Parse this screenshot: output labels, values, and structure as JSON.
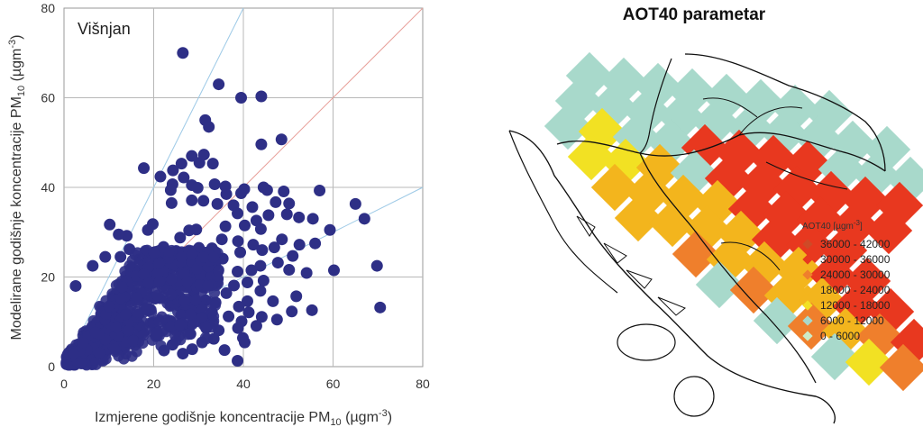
{
  "chart_data": [
    {
      "type": "scatter",
      "title": "",
      "annotation": "Višnjan",
      "xlabel": "Izmjerene godišnje koncentracije PM",
      "xlabel_sub": "10",
      "xlabel_unit": " (µgm",
      "xlabel_exp": "-3",
      "xlabel_close": ")",
      "ylabel": "Modelirane godišnje koncentracije PM",
      "ylabel_sub": "10",
      "ylabel_unit": " (µgm",
      "ylabel_exp": "-3",
      "ylabel_close": ")",
      "xlim": [
        0,
        80
      ],
      "ylim": [
        0,
        80
      ],
      "xticks": [
        "0",
        "20",
        "40",
        "60",
        "80"
      ],
      "yticks": [
        "0",
        "20",
        "40",
        "60",
        "80"
      ],
      "grid": true,
      "point_color": "#2e2f86",
      "reference_lines": [
        {
          "kind": "1:1",
          "slope": 1.0,
          "color": "#e8a09a"
        },
        {
          "kind": "factor 2 upper",
          "slope": 2.0,
          "color": "#9cc9e6"
        },
        {
          "kind": "factor 2 lower",
          "slope": 0.5,
          "color": "#9cc9e6"
        }
      ],
      "points": [
        [
          26.5,
          70
        ],
        [
          34.5,
          63
        ],
        [
          39.5,
          60
        ],
        [
          44,
          60.3
        ],
        [
          31.5,
          55
        ],
        [
          32.3,
          53.5
        ],
        [
          48.5,
          50.7
        ],
        [
          44,
          49.6
        ],
        [
          28.5,
          47
        ],
        [
          30.2,
          45.5
        ],
        [
          33.2,
          45.3
        ],
        [
          31.2,
          47.3
        ],
        [
          26.2,
          45.3
        ],
        [
          26.7,
          42.2
        ],
        [
          24.3,
          43.8
        ],
        [
          21.5,
          42.4
        ],
        [
          24.2,
          40.7
        ],
        [
          28.5,
          40.5
        ],
        [
          23.8,
          39.4
        ],
        [
          29.8,
          39.9
        ],
        [
          33.6,
          40.7
        ],
        [
          36,
          40.2
        ],
        [
          40.2,
          39.6
        ],
        [
          45.3,
          39.4
        ],
        [
          49,
          39.1
        ],
        [
          36.2,
          38.5
        ],
        [
          39.5,
          38.7
        ],
        [
          44.5,
          40
        ],
        [
          57,
          39.3
        ],
        [
          65,
          36.3
        ],
        [
          67,
          33
        ],
        [
          24,
          36.5
        ],
        [
          28.5,
          37.1
        ],
        [
          31.1,
          37
        ],
        [
          34.2,
          36.3
        ],
        [
          37.8,
          36
        ],
        [
          42,
          35.6
        ],
        [
          47.2,
          36.7
        ],
        [
          50.2,
          36.4
        ],
        [
          49.7,
          34
        ],
        [
          52.4,
          33.3
        ],
        [
          55.5,
          33
        ],
        [
          59.3,
          30.5
        ],
        [
          45.6,
          33.8
        ],
        [
          42.9,
          32.6
        ],
        [
          40.3,
          31.5
        ],
        [
          36,
          31.3
        ],
        [
          38.7,
          34.2
        ],
        [
          43.9,
          30.7
        ],
        [
          52.5,
          27.2
        ],
        [
          56,
          27.5
        ],
        [
          48.6,
          28.4
        ],
        [
          46.9,
          26.6
        ],
        [
          42.2,
          27.2
        ],
        [
          38.8,
          28
        ],
        [
          35.2,
          28.4
        ],
        [
          39.3,
          25.5
        ],
        [
          44.2,
          26
        ],
        [
          33,
          26.4
        ],
        [
          35.4,
          24.1
        ],
        [
          43.8,
          22.5
        ],
        [
          47.7,
          23.2
        ],
        [
          51,
          24.7
        ],
        [
          69.8,
          22.5
        ],
        [
          70.5,
          13.2
        ],
        [
          60.2,
          21.5
        ],
        [
          54.1,
          20.9
        ],
        [
          50.2,
          21.6
        ],
        [
          41.8,
          21.5
        ],
        [
          38.7,
          21.2
        ],
        [
          32.2,
          22.2
        ],
        [
          34.3,
          19.6
        ],
        [
          37.9,
          18.1
        ],
        [
          40.9,
          18.8
        ],
        [
          44.5,
          19.2
        ],
        [
          36.2,
          16.4
        ],
        [
          40.9,
          14.6
        ],
        [
          43.8,
          16.9
        ],
        [
          41.2,
          12.1
        ],
        [
          46.6,
          14.6
        ],
        [
          51.8,
          15.7
        ],
        [
          50.8,
          12.3
        ],
        [
          55.3,
          12.6
        ],
        [
          47.5,
          10.5
        ],
        [
          39.6,
          10.1
        ],
        [
          42.9,
          9.1
        ],
        [
          44.1,
          11.1
        ],
        [
          36.7,
          11.2
        ],
        [
          39,
          13.4
        ],
        [
          38.8,
          8.6
        ],
        [
          39.9,
          6.4
        ],
        [
          40.3,
          5.4
        ],
        [
          34.5,
          8.1
        ],
        [
          38.7,
          1.3
        ],
        [
          35.8,
          3.7
        ],
        [
          24.2,
          8.6
        ],
        [
          28.6,
          3.9
        ],
        [
          26.5,
          2.9
        ],
        [
          25.4,
          13.7
        ],
        [
          14,
          29.2
        ],
        [
          12.2,
          29.5
        ],
        [
          18.7,
          30.5
        ],
        [
          19.8,
          31.8
        ],
        [
          10.2,
          31.7
        ],
        [
          9.2,
          24.5
        ],
        [
          6.4,
          22.5
        ],
        [
          2.6,
          18
        ],
        [
          17.8,
          44.3
        ],
        [
          29.5,
          30.6
        ],
        [
          25.9,
          28.8
        ],
        [
          27.9,
          30.4
        ],
        [
          30.1,
          26.5
        ],
        [
          28.4,
          23.7
        ],
        [
          26.2,
          20.8
        ],
        [
          22.2,
          26.7
        ],
        [
          21.5,
          22.4
        ],
        [
          18.5,
          25.2
        ],
        [
          17.9,
          22.2
        ],
        [
          14.6,
          26.2
        ],
        [
          12.6,
          24.5
        ],
        [
          16.3,
          20.4
        ],
        [
          30.4,
          20
        ],
        [
          31.1,
          17.7
        ],
        [
          28.9,
          16.6
        ],
        [
          31.6,
          14.8
        ],
        [
          33.8,
          14.3
        ],
        [
          33,
          12.1
        ],
        [
          28.2,
          12.5
        ],
        [
          30.4,
          11.1
        ],
        [
          31.7,
          8.6
        ],
        [
          33.4,
          6.2
        ],
        [
          30.8,
          5.4
        ],
        [
          28.2,
          7.3
        ],
        [
          24.2,
          4.9
        ],
        [
          22.3,
          3.6
        ]
      ],
      "dense_note": "dense cluster of points between x 0-35 and y 0-25 around the 1:1 line"
    },
    {
      "type": "heatmap",
      "title": "AOT40 parametar",
      "legend_title": "AOT40 [µgm",
      "legend_title_exp": "-3",
      "legend_title_close": "]",
      "legend": [
        {
          "label": "36000  -  42000",
          "color": "#cf4a27"
        },
        {
          "label": "30000  -  36000",
          "color": "#e8381f"
        },
        {
          "label": "24000  -  30000",
          "color": "#ef7f2c"
        },
        {
          "label": "18000  -  24000",
          "color": "#f3b51d"
        },
        {
          "label": "12000  -  18000",
          "color": "#f2e123"
        },
        {
          "label": "6000  -  12000",
          "color": "#a8d9cb"
        },
        {
          "label": "0  -  6000",
          "color": "#cdebc7"
        }
      ],
      "cell_classes": [
        [
          0,
          0,
          1,
          1,
          1,
          1,
          1,
          1,
          1,
          1,
          0,
          0
        ],
        [
          0,
          1,
          1,
          1,
          1,
          1,
          1,
          1,
          1,
          1,
          1,
          0
        ],
        [
          1,
          2,
          1,
          1,
          5,
          5,
          5,
          5,
          1,
          1,
          1,
          1
        ],
        [
          2,
          2,
          3,
          1,
          5,
          5,
          5,
          5,
          5,
          5,
          1,
          1
        ],
        [
          3,
          3,
          3,
          3,
          5,
          5,
          5,
          5,
          5,
          1,
          1,
          0
        ],
        [
          3,
          3,
          3,
          3,
          5,
          5,
          5,
          0,
          0,
          0,
          0,
          0
        ],
        [
          0,
          4,
          3,
          3,
          3,
          5,
          5,
          0,
          0,
          0,
          0,
          0
        ],
        [
          0,
          1,
          4,
          3,
          3,
          5,
          5,
          0,
          0,
          0,
          0,
          0
        ],
        [
          0,
          0,
          1,
          4,
          3,
          4,
          5,
          5,
          0,
          0,
          0,
          0
        ],
        [
          0,
          0,
          0,
          1,
          2,
          4,
          5,
          5,
          0,
          0,
          0,
          0
        ]
      ]
    }
  ]
}
